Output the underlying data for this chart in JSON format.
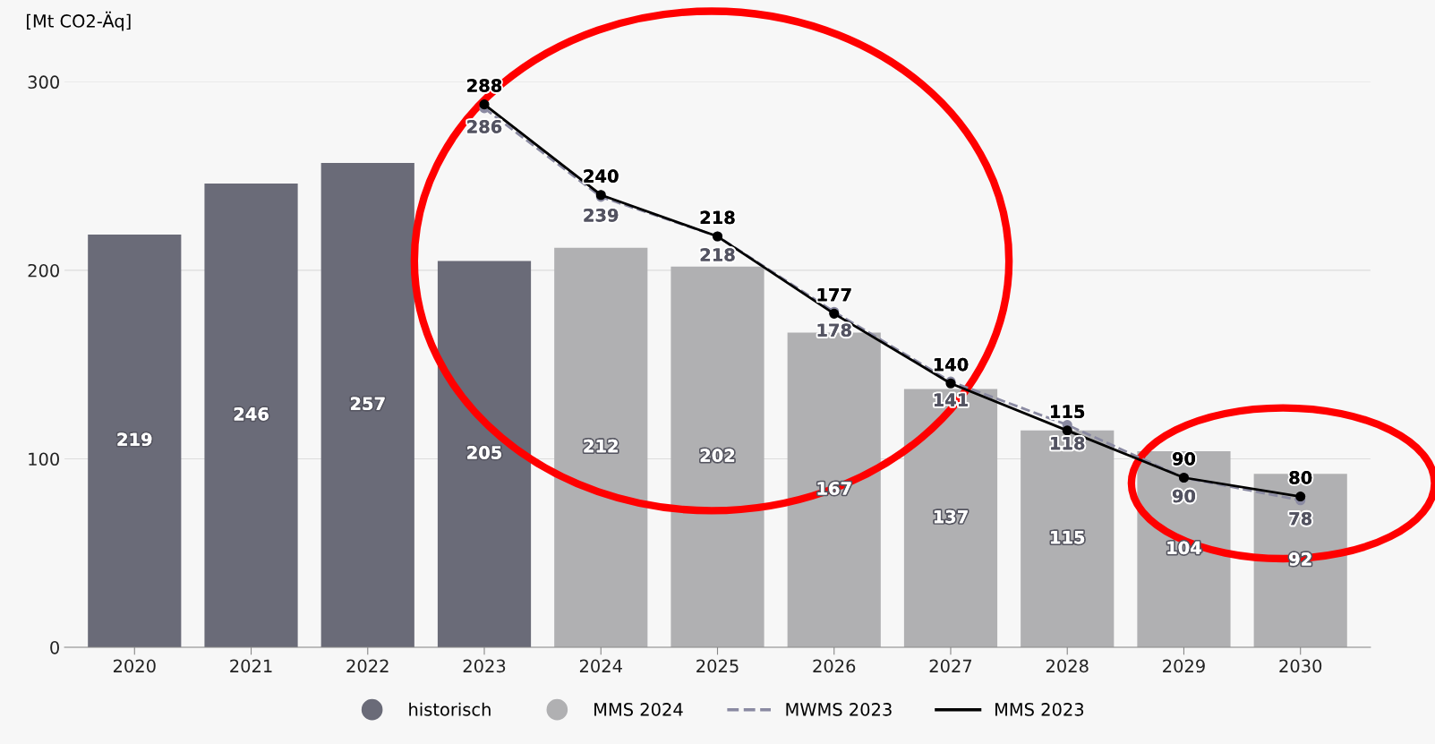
{
  "chart_data": {
    "type": "bar",
    "ylabel": "[Mt CO2-Äq]",
    "categories": [
      "2020",
      "2021",
      "2022",
      "2023",
      "2024",
      "2025",
      "2026",
      "2027",
      "2028",
      "2029",
      "2030"
    ],
    "series": [
      {
        "name": "historisch",
        "color": "#6a6b78",
        "values": [
          219,
          246,
          257,
          205,
          null,
          null,
          null,
          null,
          null,
          null,
          null
        ]
      },
      {
        "name": "MMS 2024",
        "color": "#b0b0b2",
        "values": [
          null,
          null,
          null,
          null,
          212,
          202,
          167,
          137,
          115,
          104,
          92
        ]
      },
      {
        "name": "MWMS 2023",
        "type": "line",
        "color": "#8a8aa2",
        "line_style": "dashed",
        "marker": "circle",
        "values": [
          null,
          null,
          null,
          286,
          239,
          218,
          178,
          141,
          118,
          90,
          78
        ]
      },
      {
        "name": "MMS 2023",
        "type": "line",
        "color": "#000000",
        "line_style": "solid",
        "marker": "circle",
        "values": [
          null,
          null,
          null,
          288,
          240,
          218,
          177,
          140,
          115,
          90,
          80
        ]
      }
    ],
    "ylim": [
      0,
      300
    ],
    "yticks": [
      0,
      100,
      200,
      300
    ],
    "grid": "y",
    "legend": "bottom",
    "data_labels": true
  }
}
